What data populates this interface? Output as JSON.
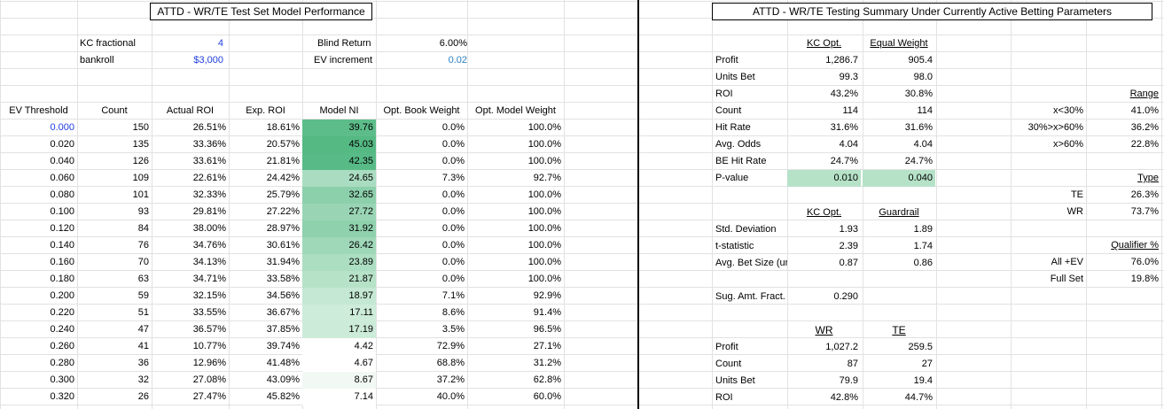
{
  "left_title": "ATTD - WR/TE Test Set Model Performance",
  "right_title": "ATTD - WR/TE Testing Summary Under Currently Active Betting Parameters",
  "params": {
    "kc_label": "KC fractional",
    "kc_value": "4",
    "bankroll_label": "bankroll",
    "bankroll_value": "$3,000",
    "blind_label": "Blind Return",
    "blind_value": "6.00%",
    "ev_inc_label": "EV increment",
    "ev_inc_value": "0.02"
  },
  "table": {
    "headers": [
      "EV Threshold",
      "Count",
      "Actual ROI",
      "Exp. ROI",
      "Model NI",
      "Opt. Book Weight",
      "Opt. Model Weight"
    ],
    "rows": [
      [
        "0.000",
        "150",
        "26.51%",
        "18.61%",
        "39.76",
        "0.0%",
        "100.0%"
      ],
      [
        "0.020",
        "135",
        "33.36%",
        "20.57%",
        "45.03",
        "0.0%",
        "100.0%"
      ],
      [
        "0.040",
        "126",
        "33.61%",
        "21.81%",
        "42.35",
        "0.0%",
        "100.0%"
      ],
      [
        "0.060",
        "109",
        "22.61%",
        "24.42%",
        "24.65",
        "7.3%",
        "92.7%"
      ],
      [
        "0.080",
        "101",
        "32.33%",
        "25.79%",
        "32.65",
        "0.0%",
        "100.0%"
      ],
      [
        "0.100",
        "93",
        "29.81%",
        "27.22%",
        "27.72",
        "0.0%",
        "100.0%"
      ],
      [
        "0.120",
        "84",
        "38.00%",
        "28.97%",
        "31.92",
        "0.0%",
        "100.0%"
      ],
      [
        "0.140",
        "76",
        "34.76%",
        "30.61%",
        "26.42",
        "0.0%",
        "100.0%"
      ],
      [
        "0.160",
        "70",
        "34.13%",
        "31.94%",
        "23.89",
        "0.0%",
        "100.0%"
      ],
      [
        "0.180",
        "63",
        "34.71%",
        "33.58%",
        "21.87",
        "0.0%",
        "100.0%"
      ],
      [
        "0.200",
        "59",
        "32.15%",
        "34.56%",
        "18.97",
        "7.1%",
        "92.9%"
      ],
      [
        "0.220",
        "51",
        "33.55%",
        "36.67%",
        "17.11",
        "8.6%",
        "91.4%"
      ],
      [
        "0.240",
        "47",
        "36.57%",
        "37.85%",
        "17.19",
        "3.5%",
        "96.5%"
      ],
      [
        "0.260",
        "41",
        "10.77%",
        "39.74%",
        "4.42",
        "72.9%",
        "27.1%"
      ],
      [
        "0.280",
        "36",
        "12.96%",
        "41.48%",
        "4.67",
        "68.8%",
        "31.2%"
      ],
      [
        "0.300",
        "32",
        "27.08%",
        "43.09%",
        "8.67",
        "37.2%",
        "62.8%"
      ],
      [
        "0.320",
        "26",
        "27.47%",
        "45.82%",
        "7.14",
        "40.0%",
        "60.0%"
      ]
    ],
    "ni_colors": [
      "#5dbd8a",
      "#55b984",
      "#58bb87",
      "#a9dcc0",
      "#8ccfab",
      "#99d5b5",
      "#8fd1ad",
      "#9fd8b9",
      "#acdec2",
      "#b6e2c8",
      "#c4e8d3",
      "#cdecda",
      "#cdebd9",
      "#ffffff",
      "#ffffff",
      "#f2f9f5",
      "#ffffff"
    ]
  },
  "summary": {
    "col1": "KC Opt.",
    "col2": "Equal Weight",
    "rows": [
      [
        "Profit",
        "1,286.7",
        "905.4"
      ],
      [
        "Units Bet",
        "99.3",
        "98.0"
      ],
      [
        "ROI",
        "43.2%",
        "30.8%"
      ],
      [
        "Count",
        "114",
        "114"
      ],
      [
        "Hit Rate",
        "31.6%",
        "31.6%"
      ],
      [
        "Avg. Odds",
        "4.04",
        "4.04"
      ],
      [
        "BE Hit Rate",
        "24.7%",
        "24.7%"
      ],
      [
        "P-value",
        "0.010",
        "0.040"
      ]
    ]
  },
  "summary2": {
    "col1": "KC Opt.",
    "col2": "Guardrail",
    "rows": [
      [
        "Std. Deviation",
        "1.93",
        "1.89"
      ],
      [
        "t-statistic",
        "2.39",
        "1.74"
      ],
      [
        "Avg. Bet Size (ur",
        "0.87",
        "0.86"
      ]
    ],
    "sug_label": "Sug. Amt. Fract.",
    "sug_value": "0.290"
  },
  "summary3": {
    "col1": "WR",
    "col2": "TE",
    "rows": [
      [
        "Profit",
        "1,027.2",
        "259.5"
      ],
      [
        "Count",
        "87",
        "27"
      ],
      [
        "Units Bet",
        "79.9",
        "19.4"
      ],
      [
        "ROI",
        "42.8%",
        "44.7%"
      ]
    ]
  },
  "range": {
    "header": "Range",
    "rows": [
      [
        "x<30%",
        "41.0%"
      ],
      [
        "30%>x>60%",
        "36.2%"
      ],
      [
        "x>60%",
        "22.8%"
      ]
    ]
  },
  "type": {
    "header": "Type",
    "rows": [
      [
        "TE",
        "26.3%"
      ],
      [
        "WR",
        "73.7%"
      ]
    ]
  },
  "qualifier": {
    "header": "Qualifier %",
    "rows": [
      [
        "All +EV",
        "76.0%"
      ],
      [
        "Full Set",
        "19.8%"
      ]
    ]
  }
}
